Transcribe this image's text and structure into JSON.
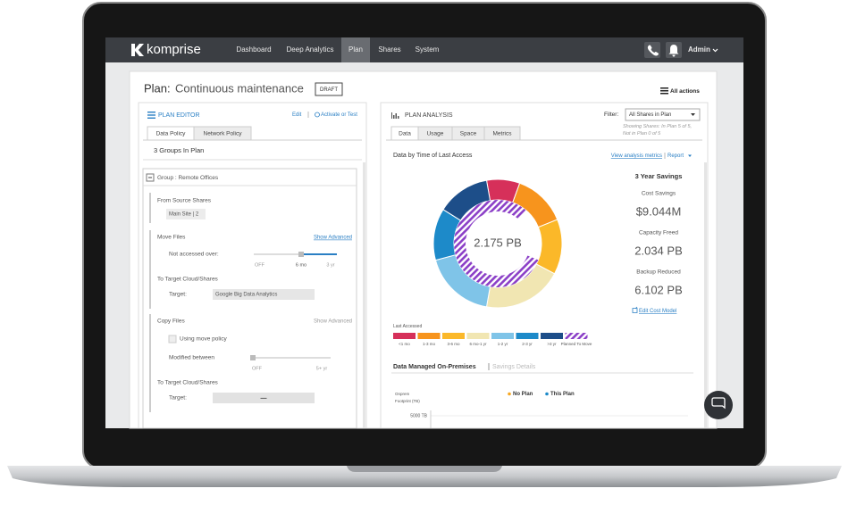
{
  "nav": {
    "brand": "komprise",
    "items": [
      "Dashboard",
      "Deep Analytics",
      "Plan",
      "Shares",
      "System"
    ],
    "user": "Admin"
  },
  "header": {
    "title_prefix": "Plan:",
    "title": "Continuous maintenance",
    "badge": "DRAFT",
    "actions": "All actions"
  },
  "editor": {
    "title": "PLAN EDITOR",
    "edit": "Edit",
    "activate": "Activate or Test",
    "tabs": [
      "Data Policy",
      "Network Policy"
    ],
    "groups_count": "3 Groups In Plan",
    "group": "Group : Remote Offices",
    "source_label": "From Source Shares",
    "source_chip": "Main Site | 2",
    "move": {
      "title": "Move Files",
      "advanced": "Show Advanced",
      "slider_label": "Not accessed over:",
      "ticks": [
        "OFF",
        "6 mo",
        "3 yr"
      ],
      "target_title": "To Target Cloud/Shares",
      "target_label": "Target:",
      "target": "Google Big Data Analytics"
    },
    "copy": {
      "title": "Copy Files",
      "advanced": "Show Advanced",
      "checkbox": "Using move policy",
      "slider_label": "Modified between",
      "ticks": [
        "OFF",
        "5+ yr"
      ],
      "target_title": "To Target Cloud/Shares",
      "target_label": "Target:",
      "target": "—"
    }
  },
  "analysis": {
    "title": "PLAN ANALYSIS",
    "filter_label": "Filter:",
    "filter": "All Shares in Plan",
    "filter_note": [
      "Showing Shares: In Plan 5 of 5,",
      "Not in Plan 0 of 5"
    ],
    "tabs": [
      "Data",
      "Usage",
      "Space",
      "Metrics"
    ],
    "chart_title": "Data by Time of Last Access",
    "metrics_link": "View analysis metrics",
    "report": "Report",
    "center": "2.175 PB",
    "savings": {
      "title": "3 Year Savings",
      "items": [
        {
          "label": "Cost Savings",
          "value": "$9.044M"
        },
        {
          "label": "Capacity Freed",
          "value": "2.034 PB"
        },
        {
          "label": "Backup Reduced",
          "value": "6.102 PB"
        }
      ],
      "edit": "Edit Cost Model"
    },
    "legend": {
      "title": "Last Accessed",
      "items": [
        {
          "label": "<1 mo",
          "color": "#d6305a"
        },
        {
          "label": "1-3 mo",
          "color": "#f7941d"
        },
        {
          "label": "3-6 mo",
          "color": "#fbb829"
        },
        {
          "label": "6 mo-1 yr",
          "color": "#f1e6b2"
        },
        {
          "label": "1-2 yr",
          "color": "#7fc4e8"
        },
        {
          "label": "2-3 yr",
          "color": "#1d8ac9"
        },
        {
          "label": ">3 yr",
          "color": "#1d4e89"
        },
        {
          "label": "Planned To Move",
          "color": "#8b3fc7"
        }
      ]
    },
    "managed": {
      "title": "Data Managed On-Premises",
      "link": "Savings Details",
      "series": [
        {
          "name": "No Plan",
          "color": "#f7a823"
        },
        {
          "name": "This Plan",
          "color": "#1d8ac9"
        }
      ],
      "axis_label": [
        "Onprem",
        "Footprint (TB)"
      ],
      "tick": "5000 TB"
    }
  }
}
